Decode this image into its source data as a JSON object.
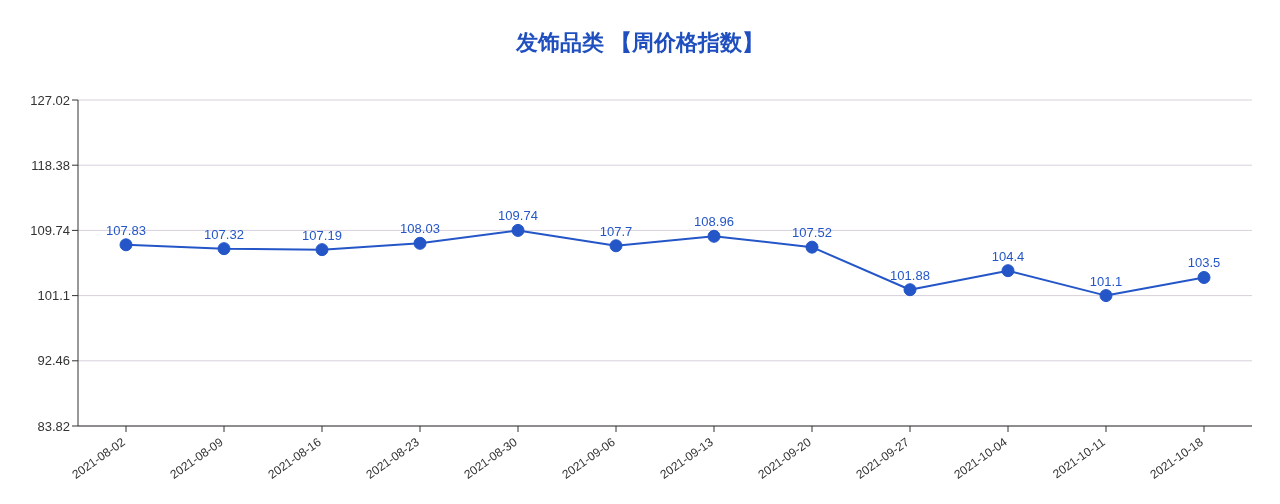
{
  "chart_data": {
    "type": "line",
    "title": "发饰品类 【周价格指数】",
    "categories": [
      "2021-08-02",
      "2021-08-09",
      "2021-08-16",
      "2021-08-23",
      "2021-08-30",
      "2021-09-06",
      "2021-09-13",
      "2021-09-20",
      "2021-09-27",
      "2021-10-04",
      "2021-10-11",
      "2021-10-18"
    ],
    "series": [
      {
        "color": "#2456c8",
        "values": [
          107.83,
          107.32,
          107.19,
          108.03,
          109.74,
          107.7,
          108.96,
          107.52,
          101.88,
          104.4,
          101.1,
          103.5
        ]
      }
    ],
    "ylim": [
      83.82,
      127.02
    ],
    "yticks": [
      83.82,
      92.46,
      101.1,
      109.74,
      118.38,
      127.02
    ],
    "grid": "y",
    "marker": "circle",
    "line_style": "solid",
    "data_labels": true
  }
}
